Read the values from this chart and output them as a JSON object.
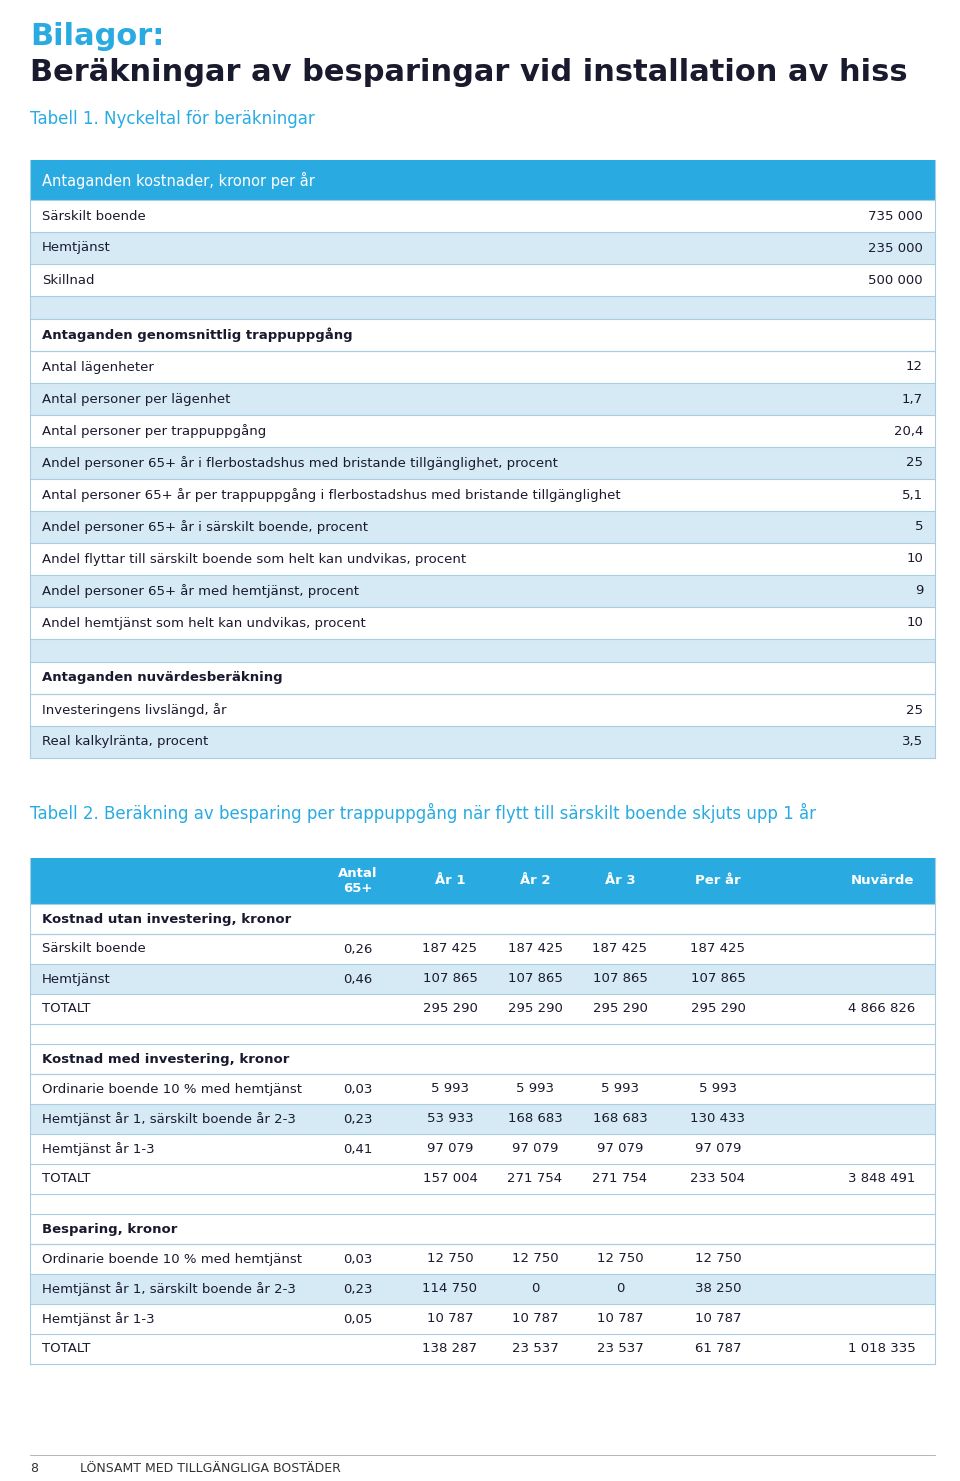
{
  "title_bilagor": "Bilagor:",
  "title_main": "Beräkningar av besparingar vid installation av hiss",
  "tabell1_title": "Tabell 1. Nyckeltal för beräkningar",
  "tabell2_title": "Tabell 2. Beräkning av besparing per trappuppgång när flytt till särskilt boende skjuts upp 1 år",
  "color_header": "#29ABE2",
  "color_subheader": "#C5DCF0",
  "color_row_light": "#D6EAF5",
  "color_row_white": "#FFFFFF",
  "color_title_blue": "#29ABE2",
  "color_text_dark": "#1A1A2E",
  "color_border": "#7BAFD4",
  "section1_header": "Antaganden kostnader, kronor per år",
  "section1_rows": [
    {
      "label": "Särskilt boende",
      "value": "735 000",
      "shaded": false
    },
    {
      "label": "Hemtjänst",
      "value": "235 000",
      "shaded": true
    },
    {
      "label": "Skillnad",
      "value": "500 000",
      "shaded": false
    }
  ],
  "section2_header": "Antaganden genomsnittlig trappuppgång",
  "section2_rows": [
    {
      "label": "Antal lägenheter",
      "value": "12",
      "shaded": false
    },
    {
      "label": "Antal personer per lägenhet",
      "value": "1,7",
      "shaded": true
    },
    {
      "label": "Antal personer per trappuppgång",
      "value": "20,4",
      "shaded": false
    },
    {
      "label": "Andel personer 65+ år i flerbostadshus med bristande tillgänglighet, procent",
      "value": "25",
      "shaded": true
    },
    {
      "label": "Antal personer 65+ år per trappuppgång i flerbostadshus med bristande tillgänglighet",
      "value": "5,1",
      "shaded": false
    },
    {
      "label": "Andel personer 65+ år i särskilt boende, procent",
      "value": "5",
      "shaded": true
    },
    {
      "label": "Andel flyttar till särskilt boende som helt kan undvikas, procent",
      "value": "10",
      "shaded": false
    },
    {
      "label": "Andel personer 65+ år med hemtjänst, procent",
      "value": "9",
      "shaded": true
    },
    {
      "label": "Andel hemtjänst som helt kan undvikas, procent",
      "value": "10",
      "shaded": false
    }
  ],
  "section3_header": "Antaganden nuvärdesberäkning",
  "section3_rows": [
    {
      "label": "Investeringens livslängd, år",
      "value": "25",
      "shaded": false
    },
    {
      "label": "Real kalkylränta, procent",
      "value": "3,5",
      "shaded": true
    }
  ],
  "table2_col_headers": [
    "Antal\n65+",
    "År 1",
    "År 2",
    "År 3",
    "Per år",
    "Nuvärde"
  ],
  "table2_section1_header": "Kostnad utan investering, kronor",
  "table2_section1_rows": [
    {
      "label": "Särskilt boende",
      "antal": "0,26",
      "ar1": "187 425",
      "ar2": "187 425",
      "ar3": "187 425",
      "perar": "187 425",
      "nuvarde": "",
      "shaded": false
    },
    {
      "label": "Hemtjänst",
      "antal": "0,46",
      "ar1": "107 865",
      "ar2": "107 865",
      "ar3": "107 865",
      "perar": "107 865",
      "nuvarde": "",
      "shaded": true
    },
    {
      "label": "TOTALT",
      "antal": "",
      "ar1": "295 290",
      "ar2": "295 290",
      "ar3": "295 290",
      "perar": "295 290",
      "nuvarde": "4 866 826",
      "shaded": false,
      "bold": false
    }
  ],
  "table2_section2_header": "Kostnad med investering, kronor",
  "table2_section2_rows": [
    {
      "label": "Ordinarie boende 10 % med hemtjänst",
      "antal": "0,03",
      "ar1": "5 993",
      "ar2": "5 993",
      "ar3": "5 993",
      "perar": "5 993",
      "nuvarde": "",
      "shaded": false
    },
    {
      "label": "Hemtjänst år 1, särskilt boende år 2-3",
      "antal": "0,23",
      "ar1": "53 933",
      "ar2": "168 683",
      "ar3": "168 683",
      "perar": "130 433",
      "nuvarde": "",
      "shaded": true
    },
    {
      "label": "Hemtjänst år 1-3",
      "antal": "0,41",
      "ar1": "97 079",
      "ar2": "97 079",
      "ar3": "97 079",
      "perar": "97 079",
      "nuvarde": "",
      "shaded": false
    },
    {
      "label": "TOTALT",
      "antal": "",
      "ar1": "157 004",
      "ar2": "271 754",
      "ar3": "271 754",
      "perar": "233 504",
      "nuvarde": "3 848 491",
      "shaded": false,
      "bold": false
    }
  ],
  "table2_section3_header": "Besparing, kronor",
  "table2_section3_rows": [
    {
      "label": "Ordinarie boende 10 % med hemtjänst",
      "antal": "0,03",
      "ar1": "12 750",
      "ar2": "12 750",
      "ar3": "12 750",
      "perar": "12 750",
      "nuvarde": "",
      "shaded": false
    },
    {
      "label": "Hemtjänst år 1, särskilt boende år 2-3",
      "antal": "0,23",
      "ar1": "114 750",
      "ar2": "0",
      "ar3": "0",
      "perar": "38 250",
      "nuvarde": "",
      "shaded": true
    },
    {
      "label": "Hemtjänst år 1-3",
      "antal": "0,05",
      "ar1": "10 787",
      "ar2": "10 787",
      "ar3": "10 787",
      "perar": "10 787",
      "nuvarde": "",
      "shaded": false
    },
    {
      "label": "TOTALT",
      "antal": "",
      "ar1": "138 287",
      "ar2": "23 537",
      "ar3": "23 537",
      "perar": "61 787",
      "nuvarde": "1 018 335",
      "shaded": false,
      "bold": false
    }
  ],
  "footer_label": "8",
  "footer_text": "LÖNSAMT MED TILLGÄNGLIGA BOSTÄDER"
}
